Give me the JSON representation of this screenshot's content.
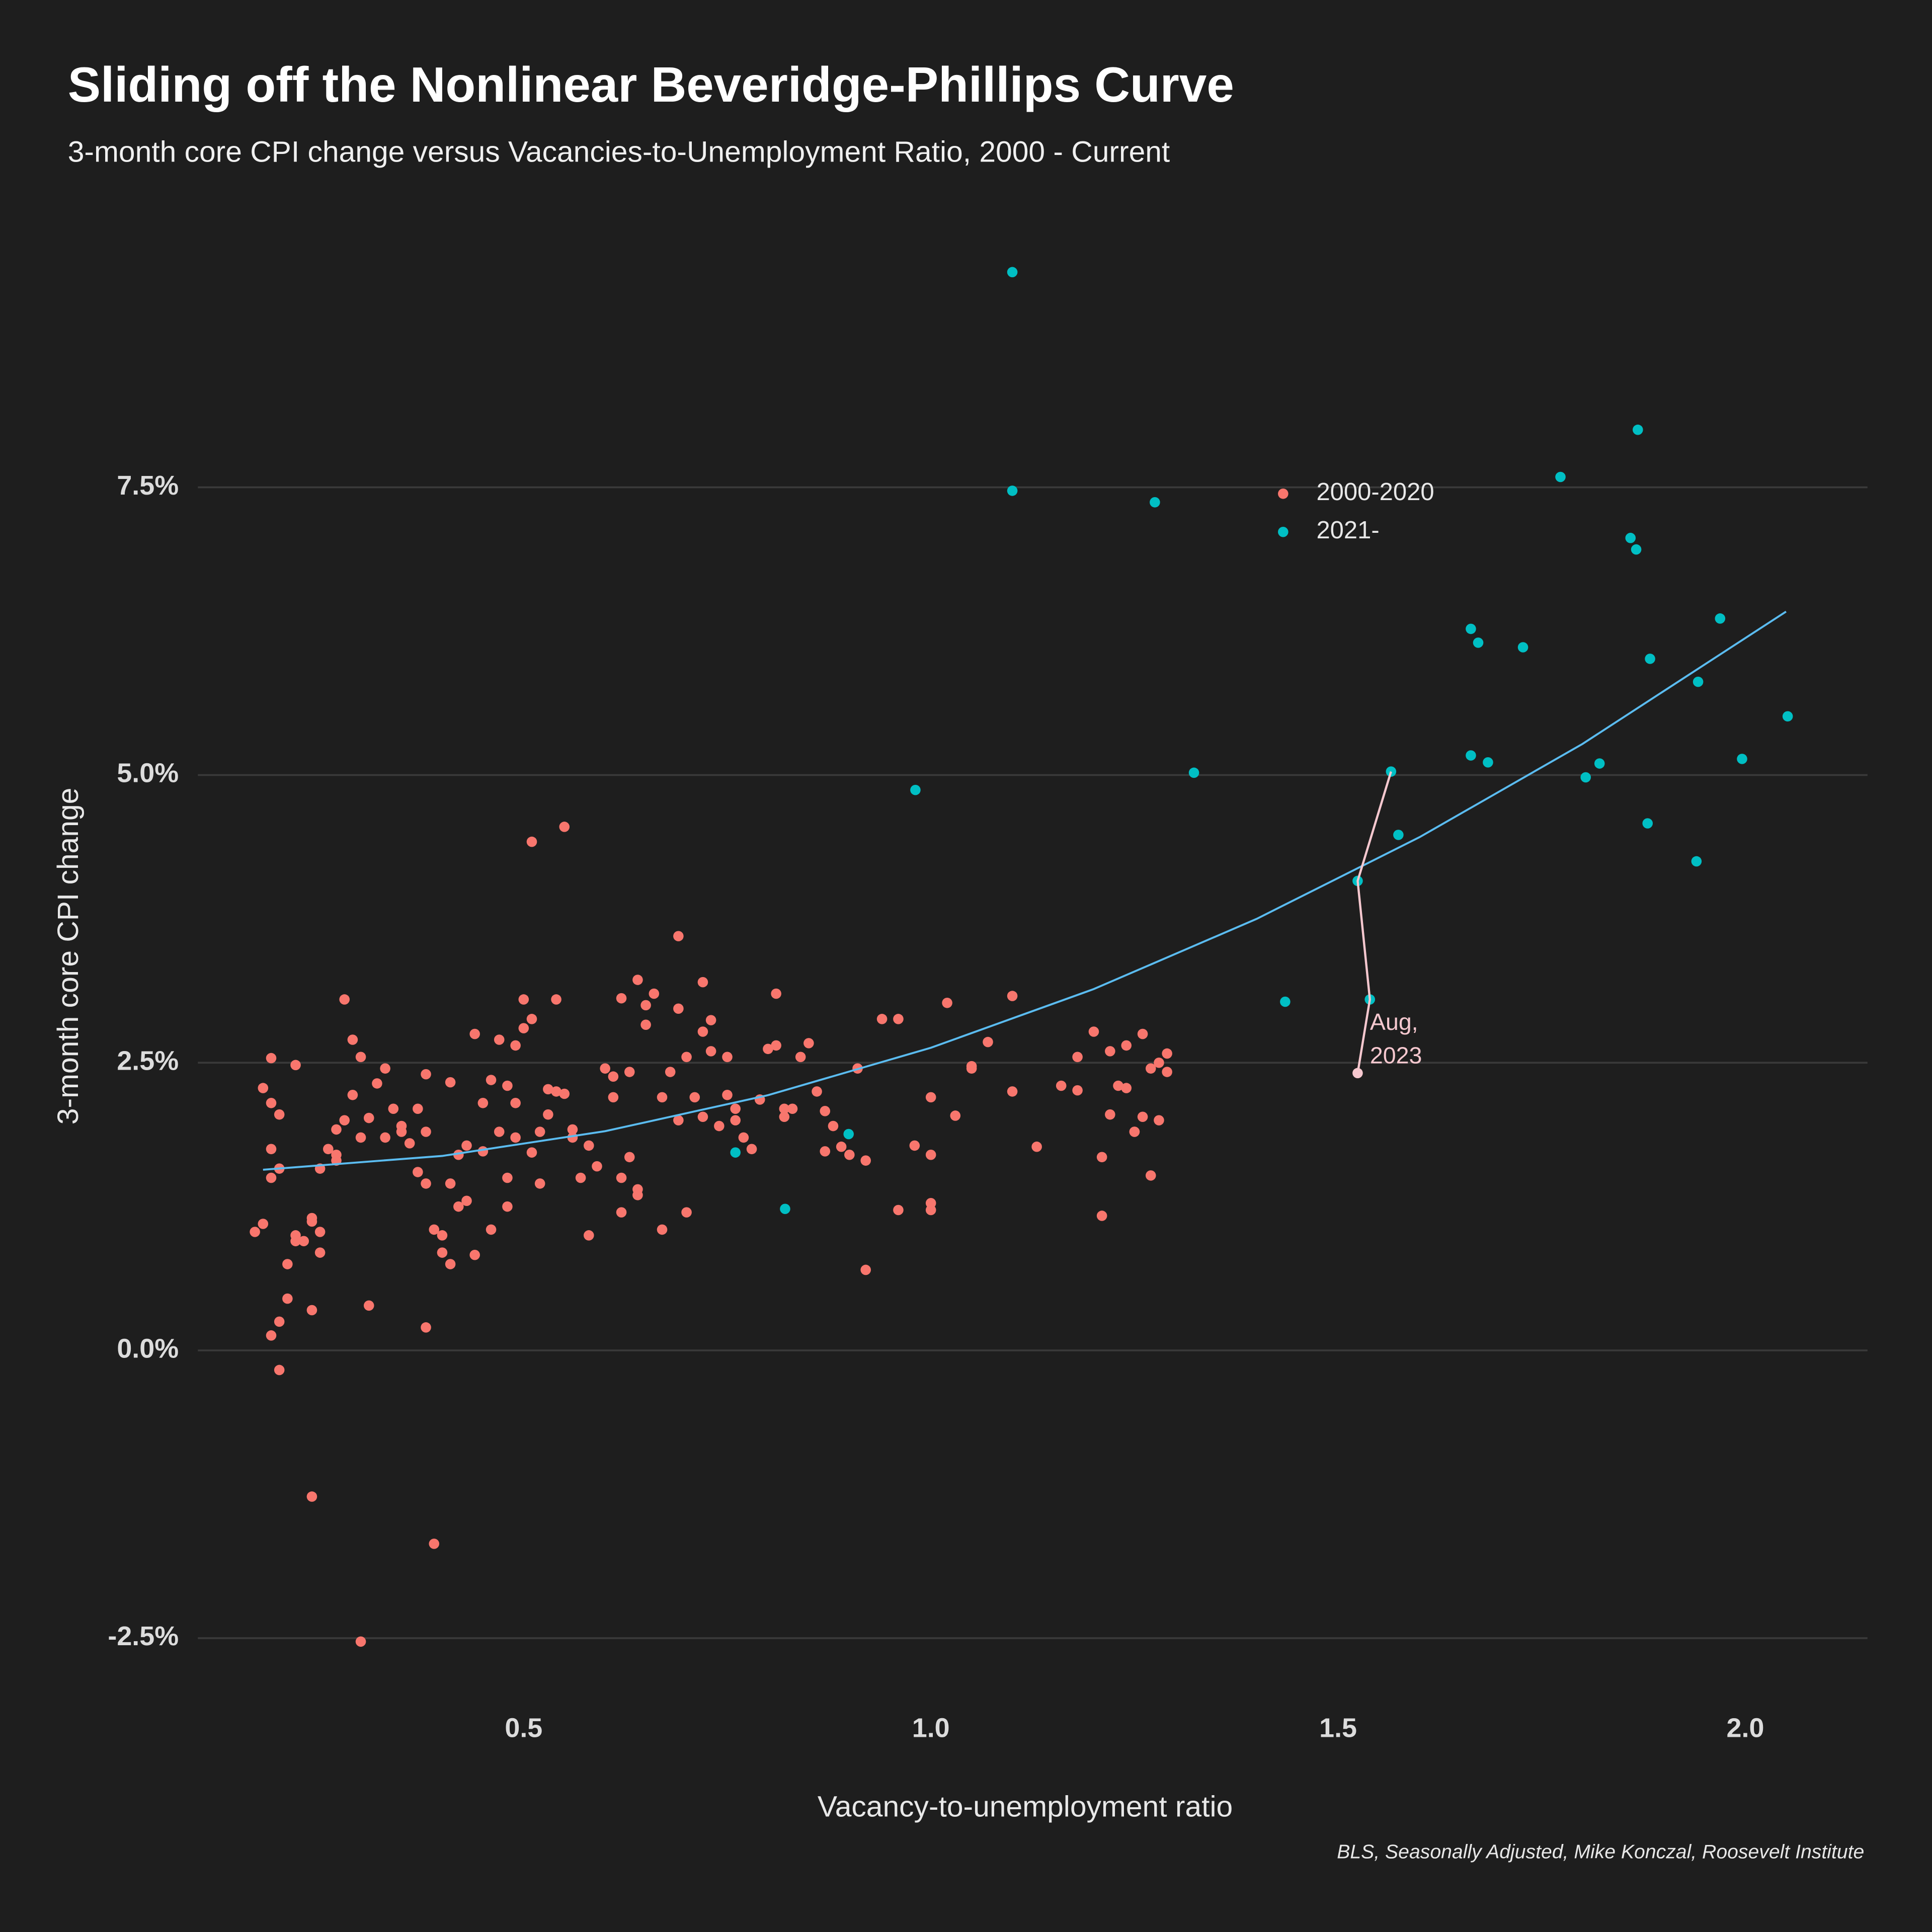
{
  "chart_data": {
    "type": "scatter",
    "title": "Sliding off the Nonlinear Beveridge-Phillips Curve",
    "subtitle": "3-month core CPI change versus Vacancies-to-Unemployment Ratio, 2000 - Current",
    "xlabel": "Vacancy-to-unemployment ratio",
    "ylabel": "3-month core CPI change",
    "caption": "BLS, Seasonally Adjusted, Mike Konczal, Roosevelt Institute",
    "xlim": [
      0.1,
      2.15
    ],
    "ylim": [
      -3.06,
      9.5
    ],
    "xticks": [
      0.5,
      {
        "value": 1.0,
        "label": "1.0"
      },
      1.5,
      {
        "value": 2.0,
        "label": "2.0"
      }
    ],
    "yticks": [
      {
        "value": -2.5,
        "label": "-2.5%"
      },
      {
        "value": 0,
        "label": "0.0%"
      },
      {
        "value": 2.5,
        "label": "2.5%"
      },
      {
        "value": 5.0,
        "label": "5.0%"
      },
      {
        "value": 7.5,
        "label": "7.5%"
      }
    ],
    "grid": true,
    "legend": "upper right",
    "series": [
      {
        "name": "2000-2020",
        "color": "#f8766d",
        "x": [
          0.55,
          0.51,
          0.69,
          0.72,
          0.28,
          0.54,
          0.5,
          0.64,
          0.62,
          0.81,
          1.1,
          1.02,
          0.29,
          0.3,
          0.19,
          0.18,
          0.22,
          0.19,
          0.2,
          0.19,
          0.2,
          0.19,
          0.17,
          0.18,
          0.21,
          0.22,
          0.22,
          0.23,
          0.24,
          0.24,
          0.25,
          0.25,
          0.21,
          0.24,
          0.2,
          0.19,
          0.2,
          0.24,
          0.31,
          0.38,
          0.39,
          0.3,
          0.25,
          0.26,
          0.27,
          0.27,
          0.28,
          0.27,
          0.29,
          0.3,
          0.31,
          0.32,
          0.33,
          0.33,
          0.34,
          0.35,
          0.36,
          0.35,
          0.37,
          0.37,
          0.38,
          0.38,
          0.38,
          0.39,
          0.4,
          0.4,
          0.41,
          0.41,
          0.41,
          0.42,
          0.42,
          0.43,
          0.43,
          0.44,
          0.44,
          0.45,
          0.45,
          0.46,
          0.46,
          0.47,
          0.47,
          0.48,
          0.48,
          0.48,
          0.49,
          0.49,
          0.49,
          0.5,
          0.51,
          0.51,
          0.52,
          0.52,
          0.53,
          0.53,
          0.54,
          0.55,
          0.56,
          0.56,
          0.57,
          0.58,
          0.58,
          0.59,
          0.6,
          0.61,
          0.61,
          0.62,
          0.62,
          0.63,
          0.63,
          0.64,
          0.64,
          0.65,
          0.65,
          0.66,
          0.67,
          0.67,
          0.68,
          0.69,
          0.69,
          0.7,
          0.7,
          0.71,
          0.72,
          0.72,
          0.73,
          0.73,
          0.74,
          0.75,
          0.75,
          0.76,
          0.76,
          0.77,
          0.78,
          0.79,
          0.8,
          0.81,
          0.82,
          0.82,
          0.83,
          0.84,
          0.85,
          0.86,
          0.87,
          0.87,
          0.88,
          0.89,
          0.9,
          0.91,
          0.92,
          0.92,
          0.94,
          0.96,
          0.96,
          0.98,
          1.0,
          1.0,
          1.0,
          1.0,
          1.03,
          1.05,
          1.05,
          1.07,
          1.1,
          1.13,
          1.16,
          1.18,
          1.18,
          1.2,
          1.21,
          1.21,
          1.22,
          1.22,
          1.23,
          1.24,
          1.24,
          1.25,
          1.25,
          1.26,
          1.26,
          1.27,
          1.27,
          1.28,
          1.28,
          1.29,
          1.29
        ],
        "values": [
          4.55,
          4.42,
          3.6,
          3.2,
          3.05,
          3.05,
          3.05,
          3.22,
          3.06,
          3.1,
          3.08,
          3.02,
          2.7,
          2.55,
          2.54,
          2.28,
          2.48,
          2.15,
          2.05,
          1.75,
          1.58,
          1.5,
          1.03,
          1.1,
          0.75,
          0.95,
          1.0,
          0.95,
          1.15,
          1.12,
          1.03,
          0.85,
          0.45,
          0.35,
          0.25,
          0.13,
          -0.17,
          -1.27,
          0.39,
          0.2,
          -1.68,
          -2.53,
          1.58,
          1.75,
          1.65,
          1.92,
          2.0,
          1.7,
          2.22,
          1.85,
          2.02,
          2.32,
          1.85,
          2.45,
          2.1,
          1.9,
          1.8,
          1.95,
          1.55,
          2.1,
          1.9,
          1.45,
          2.4,
          1.05,
          0.85,
          1.0,
          0.75,
          1.45,
          2.33,
          1.7,
          1.25,
          1.3,
          1.78,
          2.75,
          0.83,
          1.73,
          2.15,
          2.35,
          1.05,
          1.9,
          2.7,
          2.3,
          1.5,
          1.25,
          2.15,
          1.85,
          2.65,
          2.8,
          1.72,
          2.88,
          1.45,
          1.9,
          2.05,
          2.27,
          2.25,
          2.23,
          1.85,
          1.92,
          1.5,
          1.78,
          1.0,
          1.6,
          2.45,
          2.38,
          2.2,
          1.5,
          1.2,
          2.42,
          1.68,
          1.4,
          1.35,
          2.83,
          3.0,
          3.1,
          2.2,
          1.05,
          2.42,
          2.97,
          2.0,
          1.2,
          2.55,
          2.2,
          2.03,
          2.77,
          2.6,
          2.87,
          1.95,
          2.55,
          2.22,
          2.0,
          2.1,
          1.85,
          1.75,
          2.18,
          2.62,
          2.65,
          2.03,
          2.1,
          2.1,
          2.55,
          2.67,
          2.25,
          1.73,
          2.08,
          1.95,
          1.77,
          1.7,
          2.45,
          1.65,
          0.7,
          2.88,
          2.88,
          1.22,
          1.78,
          2.2,
          1.7,
          1.28,
          1.22,
          2.04,
          2.47,
          2.45,
          2.68,
          2.25,
          1.77,
          2.3,
          2.26,
          2.55,
          2.77,
          1.68,
          1.17,
          2.05,
          2.6,
          2.3,
          2.65,
          2.28,
          1.9,
          1.9,
          2.03,
          2.75,
          2.45,
          1.52,
          2.5,
          2.0,
          2.58,
          2.42
        ]
      },
      {
        "name": "2021-",
        "color": "#00bfc4",
        "x": [
          1.1,
          1.1,
          1.275,
          1.868,
          1.773,
          1.859,
          1.866,
          1.663,
          1.672,
          1.727,
          1.969,
          1.883,
          1.942,
          2.052,
          1.663,
          1.684,
          1.821,
          1.996,
          1.804,
          1.323,
          1.565,
          0.981,
          1.88,
          1.574,
          1.94,
          1.524,
          1.435,
          1.539,
          0.899,
          0.76,
          0.821
        ],
        "values": [
          9.37,
          7.47,
          7.37,
          8.0,
          7.59,
          7.06,
          6.96,
          6.27,
          6.15,
          6.11,
          6.36,
          6.01,
          5.81,
          5.51,
          5.17,
          5.11,
          5.1,
          5.14,
          4.98,
          5.02,
          5.03,
          4.87,
          4.58,
          4.48,
          4.25,
          4.08,
          3.03,
          3.05,
          1.88,
          1.72,
          1.23
        ]
      }
    ],
    "trend": {
      "color": "#5bbcf0",
      "x": [
        0.18,
        0.4,
        0.6,
        0.8,
        1.0,
        1.2,
        1.4,
        1.6,
        1.8,
        2.05
      ],
      "values": [
        1.57,
        1.69,
        1.905,
        2.218,
        2.63,
        3.14,
        3.75,
        4.46,
        5.27,
        6.42
      ]
    },
    "highlight": {
      "color": "#f6c8cf",
      "x": [
        1.565,
        1.524,
        1.539,
        1.524
      ],
      "values": [
        5.03,
        4.08,
        3.05,
        2.41
      ]
    },
    "annotation": [
      "Aug,",
      "2023"
    ]
  }
}
